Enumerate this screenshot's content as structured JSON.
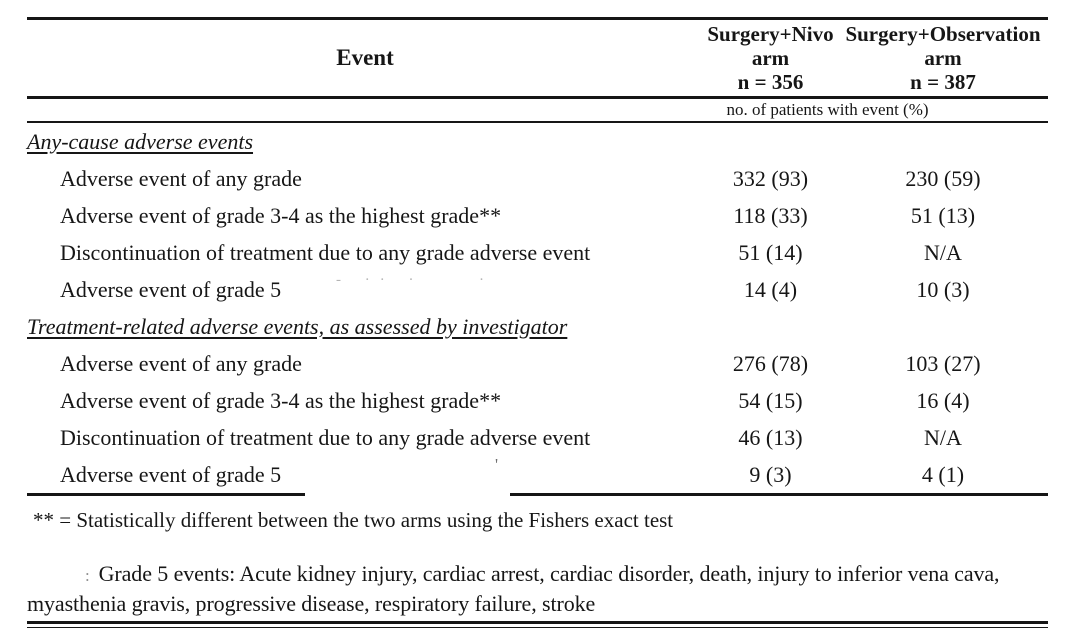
{
  "page": {
    "background": "#ffffff",
    "text_color": "#161616",
    "rule_color": "#161616"
  },
  "table": {
    "header": {
      "event_label": "Event",
      "arm1": {
        "title": "Surgery+Nivo",
        "arm": "arm",
        "n": "n = 356"
      },
      "arm2": {
        "title": "Surgery+Observation",
        "arm": "arm",
        "n": "n = 387"
      }
    },
    "subheader": "no. of patients with event (%)",
    "sections": [
      {
        "title": "Any-cause adverse events",
        "rows": [
          {
            "label": "Adverse event of any grade",
            "arm1": "332 (93)",
            "arm2": "230 (59)"
          },
          {
            "label": "Adverse event of grade 3-4 as the highest grade**",
            "arm1": "118 (33)",
            "arm2": "51 (13)"
          },
          {
            "label": "Discontinuation of treatment due to any grade adverse event",
            "arm1": "51 (14)",
            "arm2": "N/A"
          },
          {
            "label": "Adverse event of grade 5",
            "arm1": "14 (4)",
            "arm2": "10 (3)"
          }
        ]
      },
      {
        "title": "Treatment-related adverse events, as assessed by investigator",
        "rows": [
          {
            "label": "Adverse event of any grade",
            "arm1": "276 (78)",
            "arm2": "103 (27)"
          },
          {
            "label": "Adverse event of grade 3-4 as the highest grade**",
            "arm1": "54 (15)",
            "arm2": "16 (4)"
          },
          {
            "label": "Discontinuation of treatment due to any grade adverse event",
            "arm1": "46 (13)",
            "arm2": "N/A"
          },
          {
            "label": "Adverse event of grade 5",
            "arm1": "9 (3)",
            "arm2": "4 (1)"
          }
        ]
      }
    ],
    "footnotes": {
      "stat": "** = Statistically different between the two arms using the Fishers exact test",
      "grade5_marker": ":",
      "grade5": "Grade 5 events: Acute kidney injury, cardiac arrest, cardiac disorder, death, injury to inferior vena cava, myasthenia gravis, progressive disease, respiratory failure, stroke"
    },
    "artifacts": {
      "faint_dots": "- ·· ·",
      "faint_dot": "·",
      "faint_tick": "'"
    }
  }
}
